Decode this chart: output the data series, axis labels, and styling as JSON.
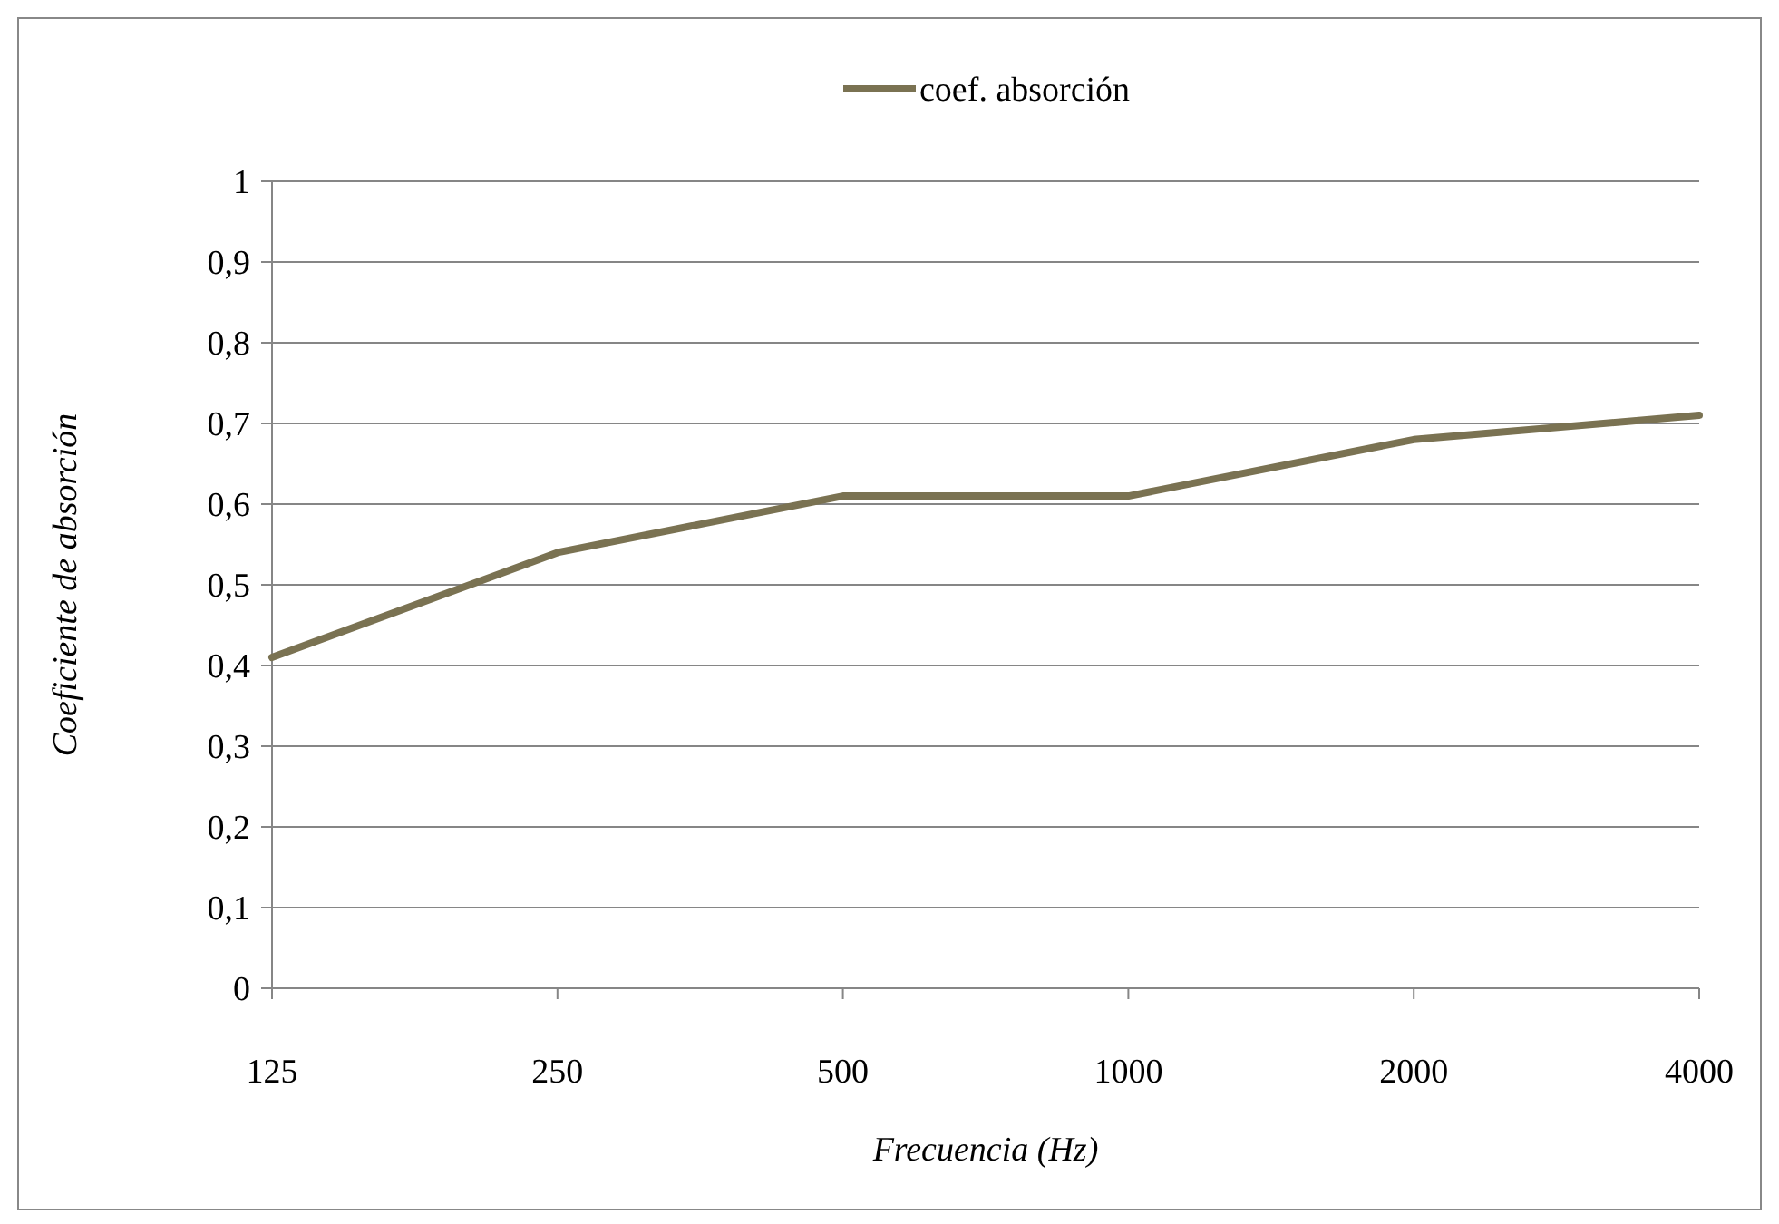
{
  "chart_data": {
    "type": "line",
    "xlabel": "Frecuencia (Hz)",
    "ylabel": "Coeficiente de absorción",
    "categories": [
      "125",
      "250",
      "500",
      "1000",
      "2000",
      "4000"
    ],
    "series": [
      {
        "name": "coef. absorción",
        "color": "#7a7252",
        "values": [
          0.41,
          0.54,
          0.61,
          0.61,
          0.68,
          0.71
        ]
      }
    ],
    "ylim": [
      0,
      1
    ],
    "yticks": [
      0,
      {
        "value": 0.1,
        "label": "0,1"
      },
      {
        "value": 0.2,
        "label": "0,2"
      },
      {
        "value": 0.3,
        "label": "0,3"
      },
      {
        "value": 0.4,
        "label": "0,4"
      },
      {
        "value": 0.5,
        "label": "0,5"
      },
      {
        "value": 0.6,
        "label": "0,6"
      },
      {
        "value": 0.7,
        "label": "0,7"
      },
      {
        "value": 0.8,
        "label": "0,8"
      },
      {
        "value": 0.9,
        "label": "0,9"
      },
      1
    ],
    "grid": "y",
    "legend": "top",
    "marker": "none",
    "line_style": "solid"
  }
}
